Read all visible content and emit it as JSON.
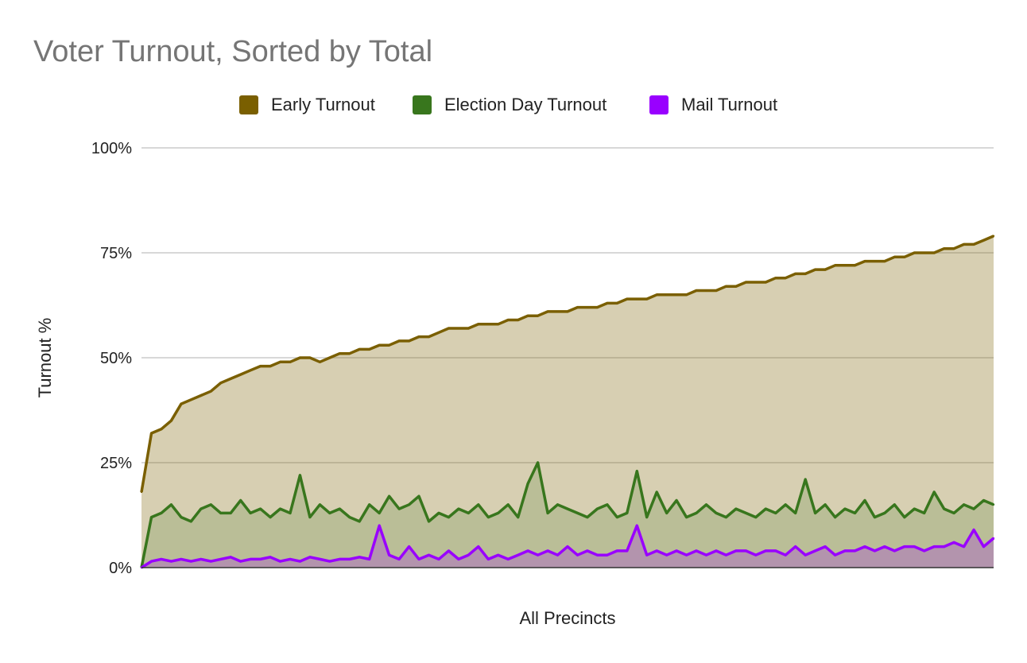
{
  "chart_data": {
    "type": "area",
    "title": "Voter Turnout, Sorted by Total",
    "xlabel": "All Precincts",
    "ylabel": "Turnout %",
    "ylim": [
      0,
      100
    ],
    "yticks": [
      "0%",
      "25%",
      "50%",
      "75%",
      "100%"
    ],
    "grid": true,
    "legend_position": "top",
    "colors": {
      "Early Turnout": "#7a5f00",
      "Election Day Turnout": "#38761d",
      "Mail Turnout": "#9900ff"
    },
    "series": [
      {
        "name": "Early Turnout",
        "values": [
          18,
          32,
          33,
          35,
          39,
          40,
          41,
          42,
          44,
          45,
          46,
          47,
          48,
          48,
          49,
          49,
          50,
          50,
          49,
          50,
          51,
          51,
          52,
          52,
          53,
          53,
          54,
          54,
          55,
          55,
          56,
          57,
          57,
          57,
          58,
          58,
          58,
          59,
          59,
          60,
          60,
          61,
          61,
          61,
          62,
          62,
          62,
          63,
          63,
          64,
          64,
          64,
          65,
          65,
          65,
          65,
          66,
          66,
          66,
          67,
          67,
          68,
          68,
          68,
          69,
          69,
          70,
          70,
          71,
          71,
          72,
          72,
          72,
          73,
          73,
          73,
          74,
          74,
          75,
          75,
          75,
          76,
          76,
          77,
          77,
          78,
          79
        ]
      },
      {
        "name": "Election Day Turnout",
        "values": [
          0,
          12,
          13,
          15,
          12,
          11,
          14,
          15,
          13,
          13,
          16,
          13,
          14,
          12,
          14,
          13,
          22,
          12,
          15,
          13,
          14,
          12,
          11,
          15,
          13,
          17,
          14,
          15,
          17,
          11,
          13,
          12,
          14,
          13,
          15,
          12,
          13,
          15,
          12,
          20,
          25,
          13,
          15,
          14,
          13,
          12,
          14,
          15,
          12,
          13,
          23,
          12,
          18,
          13,
          16,
          12,
          13,
          15,
          13,
          12,
          14,
          13,
          12,
          14,
          13,
          15,
          13,
          21,
          13,
          15,
          12,
          14,
          13,
          16,
          12,
          13,
          15,
          12,
          14,
          13,
          18,
          14,
          13,
          15,
          14,
          16,
          15
        ]
      },
      {
        "name": "Mail Turnout",
        "values": [
          0,
          1.5,
          2,
          1.5,
          2,
          1.5,
          2,
          1.5,
          2,
          2.5,
          1.5,
          2,
          2,
          2.5,
          1.5,
          2,
          1.5,
          2.5,
          2,
          1.5,
          2,
          2,
          2.5,
          2,
          10,
          3,
          2,
          5,
          2,
          3,
          2,
          4,
          2,
          3,
          5,
          2,
          3,
          2,
          3,
          4,
          3,
          4,
          3,
          5,
          3,
          4,
          3,
          3,
          4,
          4,
          10,
          3,
          4,
          3,
          4,
          3,
          4,
          3,
          4,
          3,
          4,
          4,
          3,
          4,
          4,
          3,
          5,
          3,
          4,
          5,
          3,
          4,
          4,
          5,
          4,
          5,
          4,
          5,
          5,
          4,
          5,
          5,
          6,
          5,
          9,
          5,
          7
        ]
      }
    ]
  }
}
